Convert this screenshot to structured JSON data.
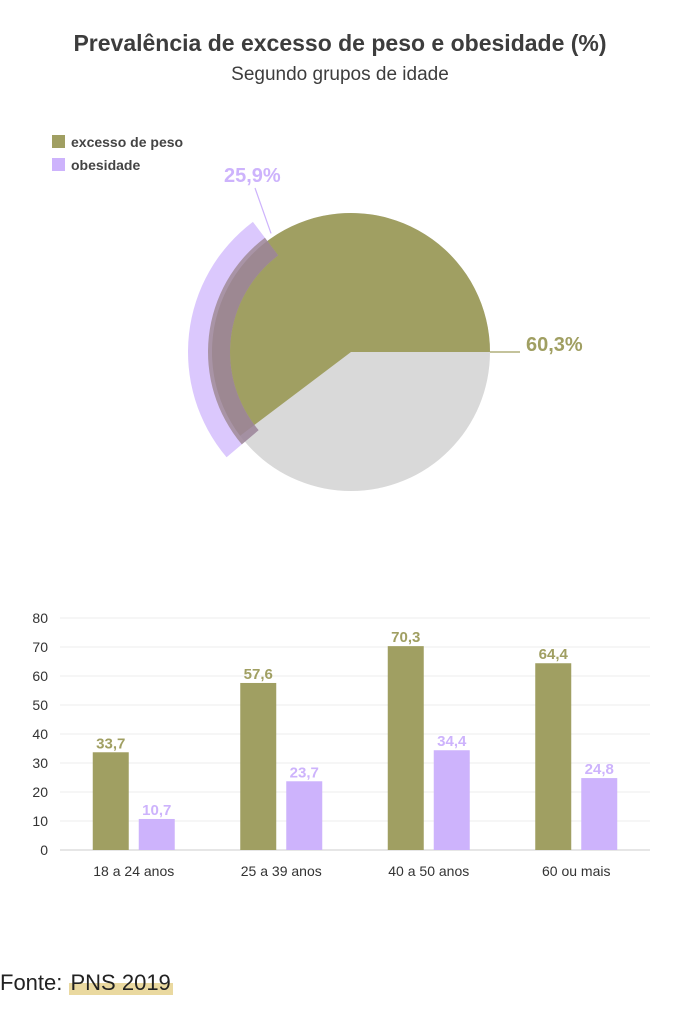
{
  "title": "Prevalência de excesso de peso e obesidade (%)",
  "subtitle": "Segundo grupos de idade",
  "legend": {
    "overweight_label": "excesso de peso",
    "obesity_label": "obesidade"
  },
  "colors": {
    "overweight": "#a09f62",
    "obesity": "#cdb3fc",
    "overlap": "#80695f",
    "remainder": "#d9d9d9"
  },
  "source": {
    "prefix": "Fonte:",
    "name": "PNS 2019"
  },
  "chart_data": [
    {
      "type": "pie",
      "slices": [
        {
          "name": "excesso de peso",
          "value": 60.3,
          "label": "60,3%"
        },
        {
          "name": "obesidade",
          "value": 25.9,
          "label": "25,9%"
        }
      ]
    },
    {
      "type": "bar",
      "categories": [
        "18 a 24 anos",
        "25 a 39 anos",
        "40 a 50 anos",
        "60 ou mais"
      ],
      "series": [
        {
          "name": "excesso de peso",
          "values": [
            33.7,
            57.6,
            70.3,
            64.4
          ],
          "labels": [
            "33,7",
            "57,6",
            "70,3",
            "64,4"
          ]
        },
        {
          "name": "obesidade",
          "values": [
            10.7,
            23.7,
            34.4,
            24.8
          ],
          "labels": [
            "10,7",
            "23,7",
            "34,4",
            "24,8"
          ]
        }
      ],
      "ylim": [
        0,
        80
      ],
      "yticks": [
        0,
        10,
        20,
        30,
        40,
        50,
        60,
        70,
        80
      ],
      "grid": true
    }
  ]
}
